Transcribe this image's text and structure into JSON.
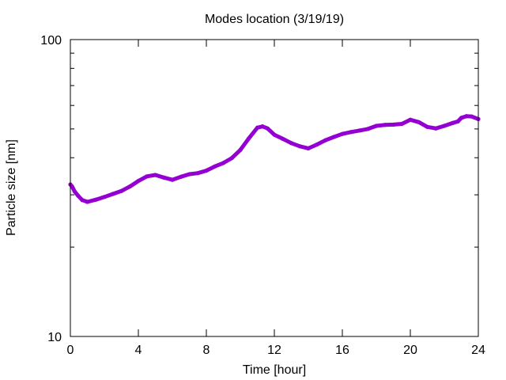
{
  "chart_data": {
    "type": "line",
    "title": "Modes location (3/19/19)",
    "xlabel": "Time [hour]",
    "ylabel": "Particle size [nm]",
    "xlim": [
      0,
      24
    ],
    "ylim": [
      10,
      100
    ],
    "yscale": "log",
    "xticks": [
      0,
      4,
      8,
      12,
      16,
      20,
      24
    ],
    "xtick_labels": [
      "0",
      "4",
      "8",
      "12",
      "16",
      "20",
      "24"
    ],
    "yticks": [
      10,
      100
    ],
    "ytick_labels": [
      "10",
      "100"
    ],
    "grid": false,
    "legend": "none",
    "series": [
      {
        "color": "#9400d3",
        "x": [
          0,
          0.1,
          0.25,
          0.45,
          0.7,
          1.0,
          1.5,
          2.0,
          2.5,
          3.0,
          3.5,
          4.0,
          4.5,
          5.0,
          5.5,
          6.0,
          6.5,
          7.0,
          7.5,
          8.0,
          8.5,
          9.0,
          9.5,
          10.0,
          10.5,
          11.0,
          11.3,
          11.6,
          12.0,
          12.5,
          13.0,
          13.5,
          14.0,
          14.5,
          15.0,
          15.5,
          16.0,
          16.5,
          17.0,
          17.5,
          18.0,
          18.5,
          19.0,
          19.5,
          20.0,
          20.5,
          21.0,
          21.5,
          22.0,
          22.5,
          22.8,
          23.0,
          23.3,
          23.6,
          24.0
        ],
        "values": [
          32.5,
          32.0,
          30.8,
          29.8,
          28.8,
          28.4,
          28.9,
          29.5,
          30.2,
          30.9,
          32.0,
          33.4,
          34.6,
          35.0,
          34.3,
          33.7,
          34.5,
          35.2,
          35.5,
          36.2,
          37.4,
          38.4,
          39.9,
          42.5,
          46.5,
          50.5,
          51.0,
          50.2,
          47.8,
          46.3,
          44.8,
          43.7,
          43.0,
          44.3,
          45.8,
          47.0,
          48.1,
          48.8,
          49.4,
          50.0,
          51.2,
          51.6,
          51.7,
          52.0,
          53.7,
          52.7,
          50.8,
          50.2,
          51.2,
          52.4,
          53.0,
          54.5,
          55.2,
          55.1,
          54.0
        ]
      }
    ]
  }
}
